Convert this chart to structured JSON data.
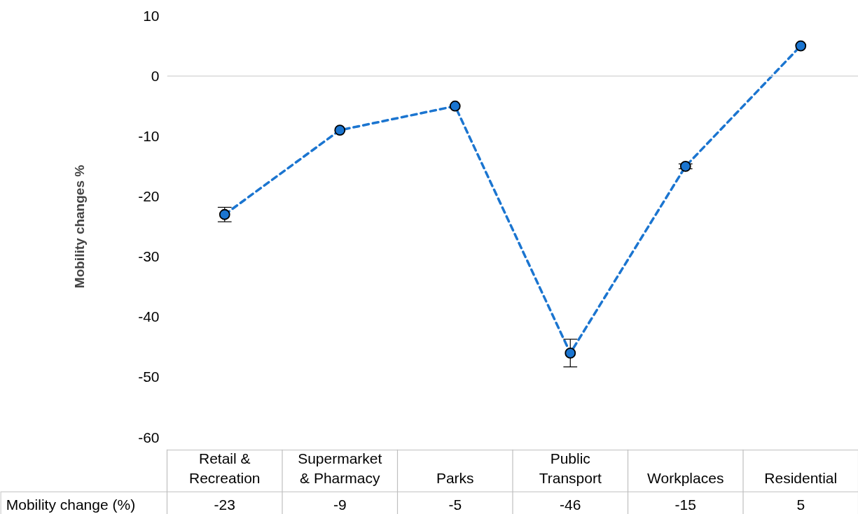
{
  "chart_data": {
    "type": "line",
    "ylabel": "Mobility changes %",
    "categories": [
      "Retail & Recreation",
      "Supermarket & Pharmacy",
      "Parks",
      "Public Transport",
      "Workplaces",
      "Residential"
    ],
    "series": [
      {
        "name": "Mobility change (%)",
        "color": "#1b75d0",
        "values": [
          -23,
          -9,
          -5,
          -46,
          -15,
          5
        ],
        "errors": [
          1.2,
          null,
          null,
          2.3,
          0.4,
          null
        ]
      }
    ],
    "ylim": [
      -60,
      10
    ],
    "yticks": [
      -60,
      -50,
      -40,
      -30,
      -20,
      -10,
      0,
      10
    ],
    "ref_lines": [
      {
        "axis": "y",
        "value": 0,
        "color": "#d9d9d9"
      }
    ],
    "grid": false,
    "marker": "circle",
    "line_style": "dashed",
    "data_labels": true
  }
}
